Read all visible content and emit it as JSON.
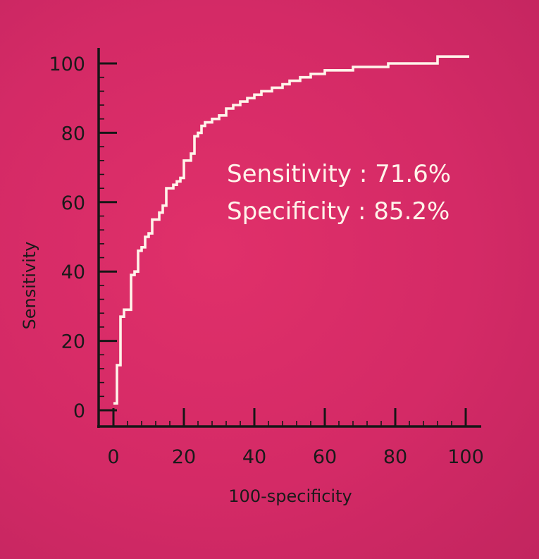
{
  "chart_data": {
    "type": "line",
    "title": "",
    "xlabel": "100-specificity",
    "ylabel": "Sensitivity",
    "xlim": [
      0,
      100
    ],
    "ylim": [
      0,
      100
    ],
    "x_ticks": [
      "0",
      "20",
      "40",
      "60",
      "80",
      "100"
    ],
    "y_ticks": [
      "0",
      "20",
      "40",
      "60",
      "80",
      "100"
    ],
    "grid": false,
    "legend": "none",
    "colors": {
      "background": "#d42a66",
      "curve": "#fff3ea",
      "axis": "#161616"
    },
    "annotations": [
      "Sensitivity : 71.6%",
      "Specificity : 85.2%"
    ],
    "series": [
      {
        "x": [
          0,
          1,
          1,
          2,
          2,
          3,
          3,
          5,
          5,
          6,
          6,
          7,
          7,
          8,
          8,
          9,
          9,
          10,
          10,
          11,
          11,
          13,
          13,
          14,
          14,
          15,
          15,
          17,
          17,
          18,
          18,
          19,
          19,
          20,
          20,
          22,
          22,
          23,
          23,
          24,
          24,
          25,
          25,
          26,
          26,
          28,
          28,
          30,
          30,
          32,
          32,
          34,
          34,
          36,
          36,
          38,
          38,
          40,
          40,
          42,
          42,
          45,
          45,
          48,
          48,
          50,
          50,
          53,
          53,
          56,
          56,
          60,
          60,
          68,
          68,
          78,
          78,
          92,
          92,
          101
        ],
        "y": [
          2,
          2,
          13,
          13,
          27,
          27,
          29,
          29,
          39,
          39,
          40,
          40,
          46,
          46,
          47,
          47,
          50,
          50,
          51,
          51,
          55,
          55,
          57,
          57,
          59,
          59,
          64,
          64,
          65,
          65,
          66,
          66,
          67,
          67,
          72,
          72,
          74,
          74,
          79,
          79,
          80,
          80,
          82,
          82,
          83,
          83,
          84,
          84,
          85,
          85,
          87,
          87,
          88,
          88,
          89,
          89,
          90,
          90,
          91,
          91,
          92,
          92,
          93,
          93,
          94,
          94,
          95,
          95,
          96,
          96,
          97,
          97,
          98,
          98,
          99,
          99,
          100,
          100,
          102,
          102
        ]
      }
    ]
  }
}
